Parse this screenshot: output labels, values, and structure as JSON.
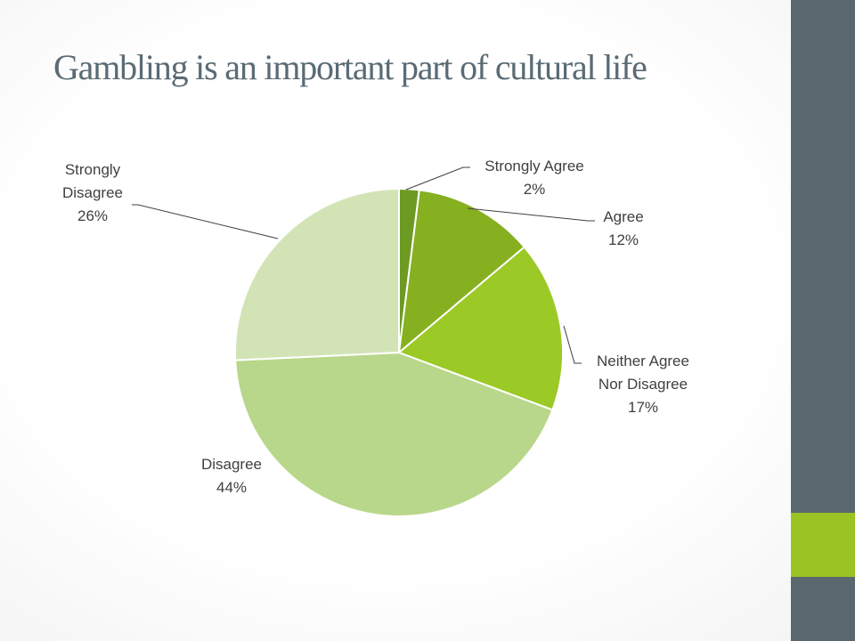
{
  "slide": {
    "sidebar_color": "#5a6870",
    "accent_color": "#99c424"
  },
  "chart_data": {
    "type": "pie",
    "title": "Gambling is an important part of cultural life",
    "start_angle_deg": 0,
    "direction": "clockwise",
    "legend": "none",
    "label_style": "outside-with-leader-lines",
    "slices": [
      {
        "label": [
          "Strongly Agree"
        ],
        "value": 2,
        "value_label": "2%",
        "color": "#6d9a23"
      },
      {
        "label": [
          "Agree"
        ],
        "value": 12,
        "value_label": "12%",
        "color": "#86b020"
      },
      {
        "label": [
          "Neither Agree",
          "Nor Disagree"
        ],
        "value": 17,
        "value_label": "17%",
        "color": "#9bc925"
      },
      {
        "label": [
          "Disagree"
        ],
        "value": 44,
        "value_label": "44%",
        "color": "#b9d78b"
      },
      {
        "label": [
          "Strongly",
          "Disagree"
        ],
        "value": 26,
        "value_label": "26%",
        "color": "#d2e4b6"
      }
    ]
  }
}
